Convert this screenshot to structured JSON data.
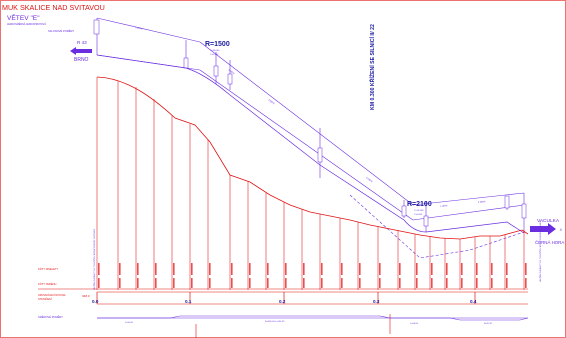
{
  "title": "MUK SKALICE NAD SVITAVOU",
  "branch": "VĚTEV \"E\"",
  "branch_sub": "JEDNOSMĚRNÁ JEDNOPRUHOVÁ",
  "top_label": "SKLONOVÉ POMĚRY",
  "left_route": {
    "number": "R 43",
    "city": "BRNO"
  },
  "right_route": {
    "city": "VACULKA",
    "sub": "ČERNÁ HORA",
    "mark": "I/"
  },
  "curve_top": {
    "label": "R=1500",
    "t": "T=30.000",
    "y": "Y=0.300"
  },
  "curve_bottom": {
    "label": "R=2100",
    "t": "T=13.238",
    "y": "Y=0.004"
  },
  "vertical_note": "KM 0.300 KŘÍŽENÍ SE SILNICÍ II/ 22",
  "left_vertical_note": "SNÍŽENÍ NIVELETY O TLOUŠŤKU KONSTRUKCE VOZOVKY",
  "right_vertical_note": "SNÍŽENÍ NIVELETY O TLOUŠŤKU KONSTRUKCE VOZOVKY",
  "rows": {
    "kota_nivelety": "KÓTY NIVELETY",
    "kota_terenu": "KÓTY TERÉNU",
    "srovnavaci": "SROVNÁVACÍ ROVINA",
    "staniceni": "STANIČENÍ",
    "smerove": "SMĚROVÉ POMĚRY"
  },
  "datum": "348.0",
  "km_labels": [
    "0.0",
    "0.1",
    "0.2",
    "0.3",
    "0.4"
  ],
  "bottom_segments": [
    "L=50.00",
    "R=265.00  L=104.23",
    "L=54.00",
    "R=22.37"
  ],
  "grade_labels": [
    "1.300%",
    "3.680%",
    "2.050%",
    "5.330%",
    "1.100%",
    "2.300%"
  ],
  "colors": {
    "terrain": "#e01414",
    "grade": "#6a2ee0",
    "navy": "#1a1aa0"
  }
}
